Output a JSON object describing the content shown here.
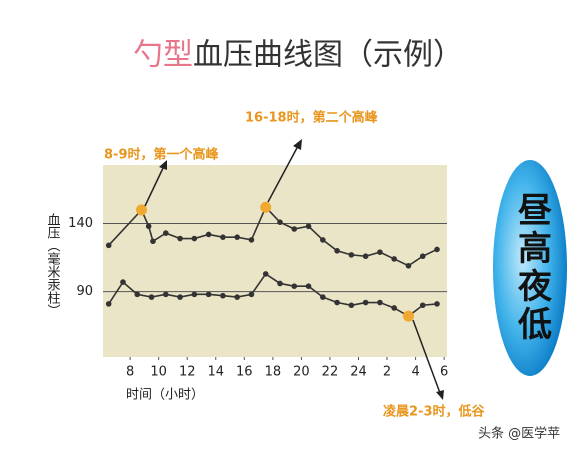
{
  "chart_data": {
    "type": "line",
    "title_highlight": "勺型",
    "title": "血压曲线图（示例）",
    "xlabel": "时间（小时）",
    "ylabel": "血压（毫米汞柱）",
    "side_note": "昼高夜低",
    "watermark": "头条 @医学苹",
    "annotations": [
      "8-9时，第一个高峰",
      "16-18时，第二个高峰",
      "凌晨2-3时，低谷"
    ],
    "xlim": [
      6.1,
      30.2
    ],
    "xticks": [
      8,
      10,
      12,
      14,
      16,
      18,
      20,
      22,
      24,
      {
        "value": 26,
        "label": "2"
      },
      {
        "value": 28,
        "label": "4"
      },
      {
        "value": 30,
        "label": "6"
      }
    ],
    "ylim": [
      42,
      183
    ],
    "yticks": [
      90,
      140
    ],
    "grid": true,
    "series": [
      {
        "color": "#333333",
        "x": [
          6.5,
          8.8,
          9.3,
          9.6,
          10.5,
          11.5,
          12.5,
          13.5,
          14.5,
          15.5,
          16.5,
          17.5,
          18.5,
          19.5,
          20.5,
          21.5,
          22.5,
          23.5,
          24.5,
          25.5,
          26.5,
          27.5,
          28.5,
          29.5
        ],
        "values": [
          124,
          150,
          138,
          127,
          133,
          129,
          129,
          132,
          130,
          130,
          128,
          152,
          141,
          136,
          138,
          128,
          120,
          117,
          116,
          119,
          114,
          109,
          116,
          121
        ],
        "marker_colors": [
          "#333333",
          "#f0a830",
          "#333333",
          "#333333",
          "#333333",
          "#333333",
          "#333333",
          "#333333",
          "#333333",
          "#333333",
          "#333333",
          "#f0a830",
          "#333333",
          "#333333",
          "#333333",
          "#333333",
          "#333333",
          "#333333",
          "#333333",
          "#333333",
          "#333333",
          "#333333",
          "#333333",
          "#333333"
        ]
      },
      {
        "color": "#333333",
        "x": [
          6.5,
          7.5,
          8.5,
          9.5,
          10.5,
          11.5,
          12.5,
          13.5,
          14.5,
          15.5,
          16.5,
          17.5,
          18.5,
          19.5,
          20.5,
          21.5,
          22.5,
          23.5,
          24.5,
          25.5,
          26.5,
          27.5,
          28.5,
          29.5
        ],
        "values": [
          81,
          97,
          88,
          86,
          88,
          86,
          88,
          88,
          87,
          86,
          88,
          103,
          96,
          94,
          94,
          86,
          82,
          80,
          82,
          82,
          78,
          72,
          80,
          81
        ],
        "marker_colors": [
          "#333333",
          "#333333",
          "#333333",
          "#333333",
          "#333333",
          "#333333",
          "#333333",
          "#333333",
          "#333333",
          "#333333",
          "#333333",
          "#333333",
          "#333333",
          "#333333",
          "#333333",
          "#333333",
          "#333333",
          "#333333",
          "#333333",
          "#333333",
          "#333333",
          "#f0a830",
          "#333333",
          "#333333"
        ]
      }
    ]
  }
}
